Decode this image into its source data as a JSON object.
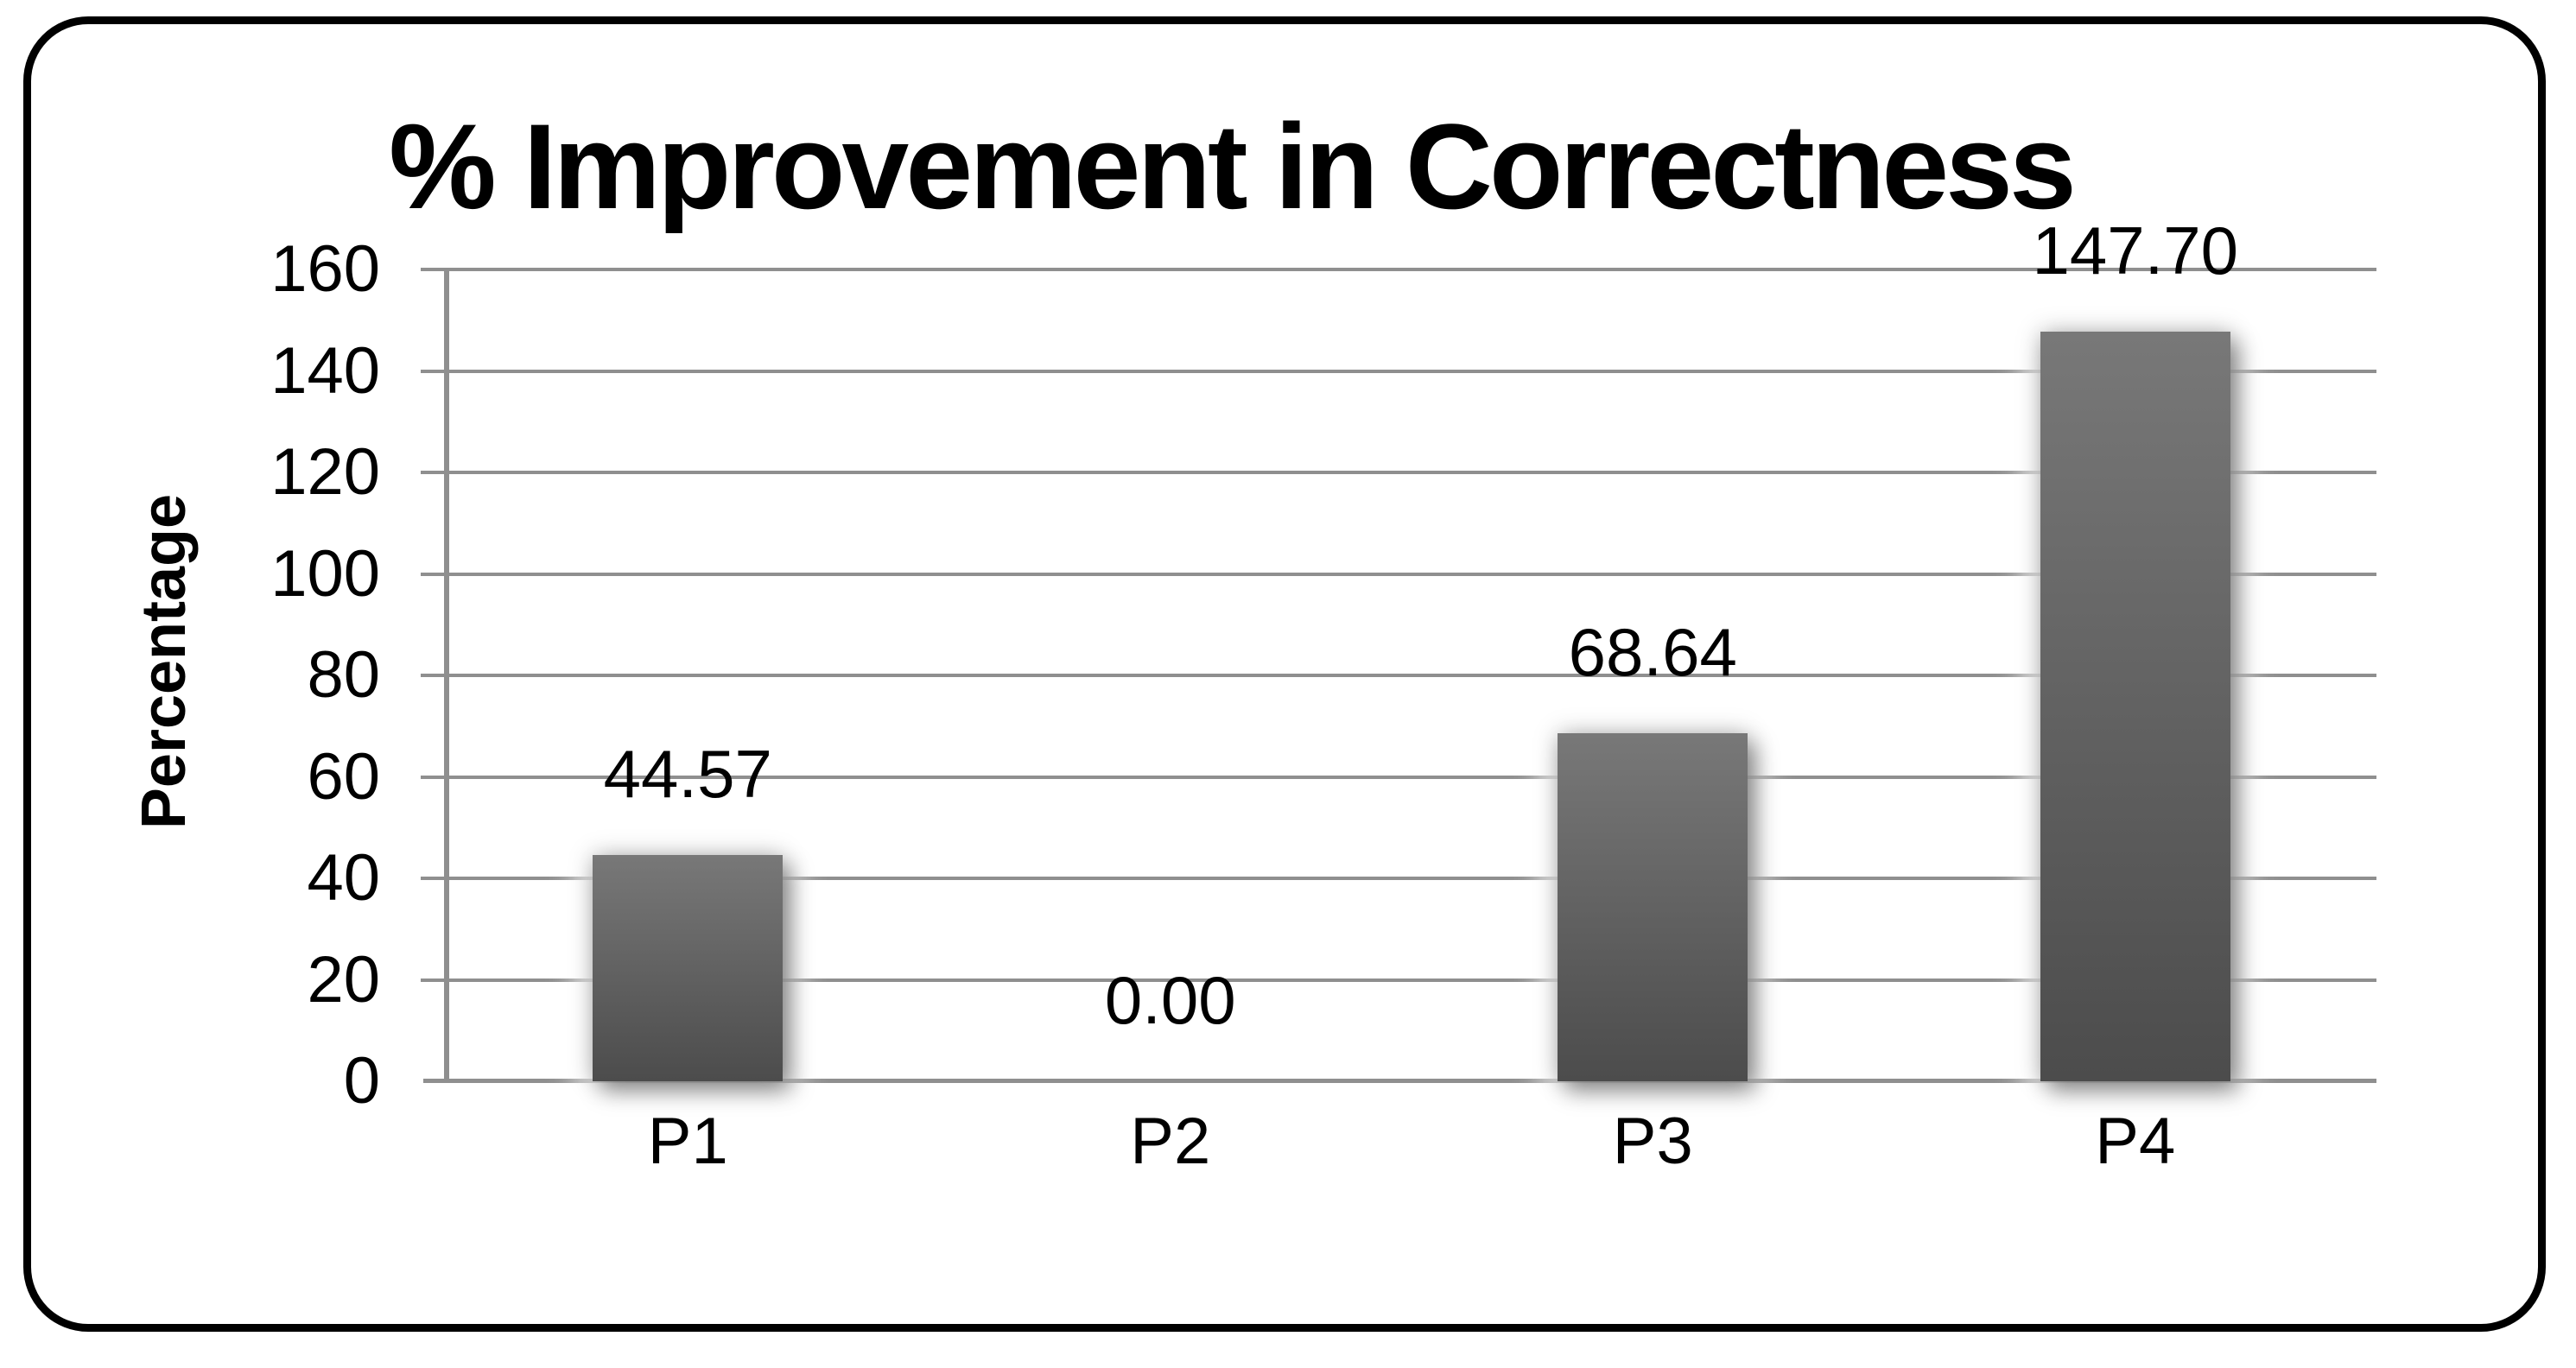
{
  "chart_data": {
    "type": "bar",
    "title": "% Improvement in Correctness",
    "xlabel": "",
    "ylabel": "Percentage",
    "categories": [
      "P1",
      "P2",
      "P3",
      "P4"
    ],
    "values": [
      44.57,
      0.0,
      68.64,
      147.7
    ],
    "data_labels": [
      "44.57",
      "0.00",
      "68.64",
      "147.70"
    ],
    "yticks": [
      0,
      20,
      40,
      60,
      80,
      100,
      120,
      140,
      160
    ],
    "ylim": [
      0,
      160
    ],
    "grid": true,
    "legend": "none",
    "colors": {
      "bar_gradient_top": "#787878",
      "bar_gradient_bottom": "#4c4c4c",
      "gridline": "#8f8f8f",
      "axis": "#8f8f8f",
      "text": "#000000",
      "border": "#000000",
      "background": "#ffffff"
    }
  }
}
